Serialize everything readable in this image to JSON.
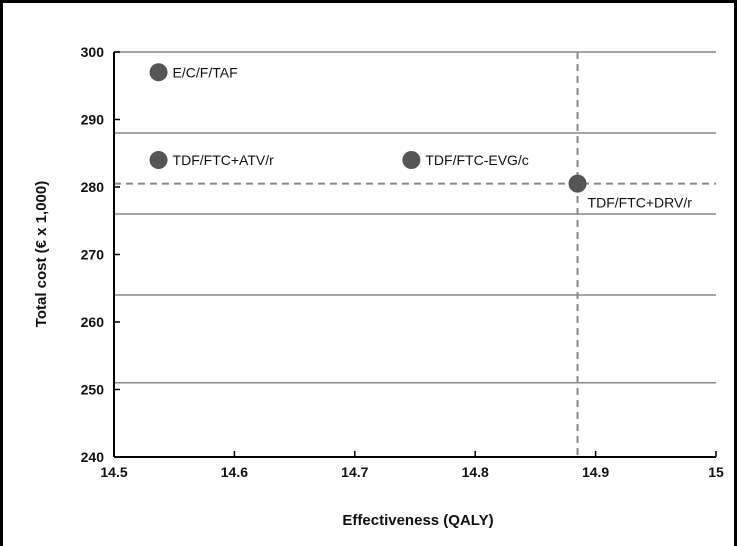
{
  "chart_data": {
    "type": "scatter",
    "title": "",
    "xlabel": "Effectiveness (QALY)",
    "ylabel": "Total cost (€ x 1,000)",
    "xlim": [
      14.5,
      15
    ],
    "ylim": [
      240,
      300
    ],
    "xticks": [
      14.5,
      14.6,
      14.7,
      14.8,
      14.9,
      15
    ],
    "xtick_labels": [
      "14.5",
      "14.6",
      "14.7",
      "14.8",
      "14.9",
      "15"
    ],
    "yticks": [
      240,
      250,
      260,
      270,
      280,
      290,
      300
    ],
    "ytick_labels": [
      "240",
      "250",
      "260",
      "270",
      "280",
      "290",
      "300"
    ],
    "points": [
      {
        "label": "E/C/F/TAF",
        "x": 14.537,
        "y": 297
      },
      {
        "label": "TDF/FTC+ATV/r",
        "x": 14.537,
        "y": 284
      },
      {
        "label": "TDF/FTC-EVG/c",
        "x": 14.747,
        "y": 284
      },
      {
        "label": "TDF/FTC+DRV/r",
        "x": 14.885,
        "y": 280.5
      }
    ],
    "reference_lines": {
      "x": 14.885,
      "y": 280.5,
      "style": "dashed"
    },
    "gridlines": {
      "axis": "y",
      "values": [
        251,
        264,
        276,
        288,
        300
      ]
    },
    "point_color": "#555555",
    "grid_color": "#888888"
  }
}
